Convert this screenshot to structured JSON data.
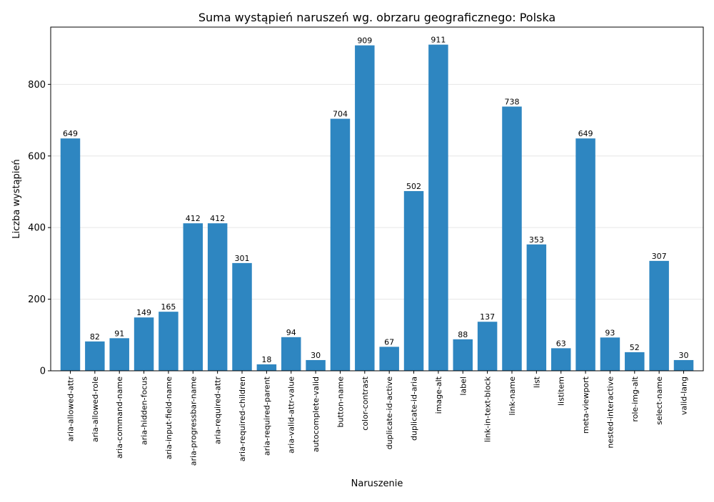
{
  "chart_data": {
    "type": "bar",
    "title": "Suma wystąpień naruszeń wg. obrzaru geograficznego: Polska",
    "xlabel": "Naruszenie",
    "ylabel": "Liczba wystąpień",
    "ylim": [
      0,
      960
    ],
    "yticks": [
      0,
      200,
      400,
      600,
      800
    ],
    "grid": "horizontal",
    "bar_color": "#2e86c1",
    "grid_color": "#e6e6e6",
    "categories": [
      "aria-allowed-attr",
      "aria-allowed-role",
      "aria-command-name",
      "aria-hidden-focus",
      "aria-input-field-name",
      "aria-progressbar-name",
      "aria-required-attr",
      "aria-required-children",
      "aria-required-parent",
      "aria-valid-attr-value",
      "autocomplete-valid",
      "button-name",
      "color-contrast",
      "duplicate-id-active",
      "duplicate-id-aria",
      "image-alt",
      "label",
      "link-in-text-block",
      "link-name",
      "list",
      "listitem",
      "meta-viewport",
      "nested-interactive",
      "role-img-alt",
      "select-name",
      "valid-lang"
    ],
    "values": [
      649,
      82,
      91,
      149,
      165,
      412,
      412,
      301,
      18,
      94,
      30,
      704,
      909,
      67,
      502,
      911,
      88,
      137,
      738,
      353,
      63,
      649,
      93,
      52,
      307,
      30
    ]
  }
}
